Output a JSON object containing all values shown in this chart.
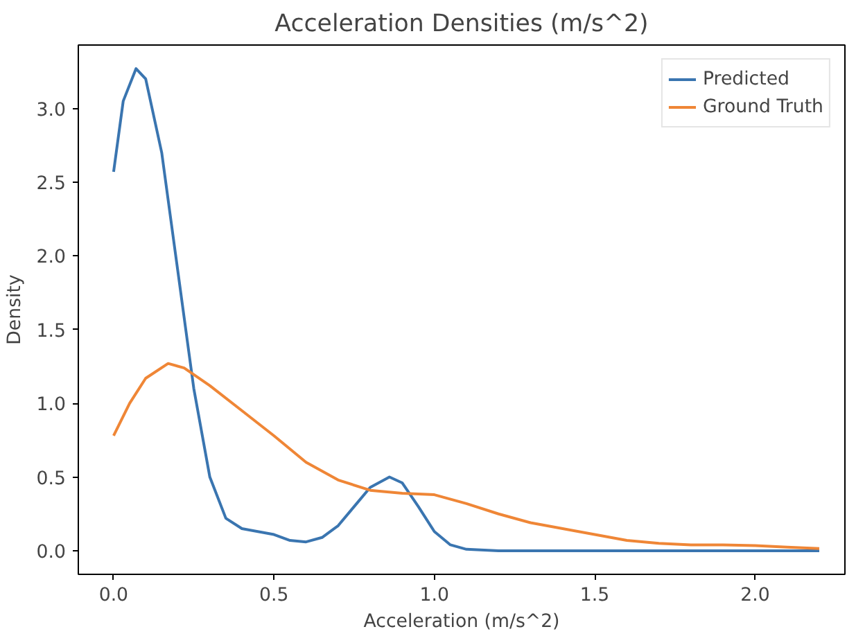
{
  "chart_data": {
    "type": "line",
    "title": "Acceleration Densities (m/s^2)",
    "xlabel": "Acceleration (m/s^2)",
    "ylabel": "Density",
    "xlim": [
      -0.11,
      2.28
    ],
    "ylim": [
      -0.16,
      3.43
    ],
    "xticks": [
      {
        "value": 0,
        "label": "0.0"
      },
      {
        "value": 0.5,
        "label": "0.5"
      },
      {
        "value": 1,
        "label": "1.0"
      },
      {
        "value": 1.5,
        "label": "1.5"
      },
      {
        "value": 2,
        "label": "2.0"
      }
    ],
    "yticks": [
      {
        "value": 0,
        "label": "0.0"
      },
      {
        "value": 0.5,
        "label": "0.5"
      },
      {
        "value": 1,
        "label": "1.0"
      },
      {
        "value": 1.5,
        "label": "1.5"
      },
      {
        "value": 2,
        "label": "2.0"
      },
      {
        "value": 2.5,
        "label": "2.5"
      },
      {
        "value": 3,
        "label": "3.0"
      }
    ],
    "grid": false,
    "legend": "top right",
    "series": [
      {
        "name": "Predicted",
        "color": "#3a75b0",
        "x": [
          0,
          0.03,
          0.07,
          0.1,
          0.15,
          0.2,
          0.25,
          0.3,
          0.35,
          0.4,
          0.5,
          0.55,
          0.6,
          0.65,
          0.7,
          0.75,
          0.8,
          0.86,
          0.9,
          0.95,
          1.0,
          1.05,
          1.1,
          1.2,
          1.5,
          2.2
        ],
        "values": [
          2.57,
          3.05,
          3.27,
          3.2,
          2.7,
          1.9,
          1.1,
          0.5,
          0.22,
          0.15,
          0.11,
          0.07,
          0.06,
          0.09,
          0.17,
          0.3,
          0.43,
          0.5,
          0.46,
          0.3,
          0.13,
          0.04,
          0.01,
          0.0,
          0.0,
          0.0
        ]
      },
      {
        "name": "Ground Truth",
        "color": "#ef8636",
        "x": [
          0,
          0.05,
          0.1,
          0.17,
          0.22,
          0.3,
          0.4,
          0.5,
          0.6,
          0.7,
          0.8,
          0.9,
          1.0,
          1.1,
          1.2,
          1.3,
          1.4,
          1.5,
          1.6,
          1.7,
          1.8,
          1.9,
          2.0,
          2.1,
          2.2
        ],
        "values": [
          0.78,
          1.0,
          1.17,
          1.27,
          1.24,
          1.12,
          0.95,
          0.78,
          0.6,
          0.48,
          0.41,
          0.39,
          0.38,
          0.32,
          0.25,
          0.19,
          0.15,
          0.11,
          0.07,
          0.05,
          0.04,
          0.04,
          0.035,
          0.025,
          0.015
        ]
      }
    ]
  }
}
